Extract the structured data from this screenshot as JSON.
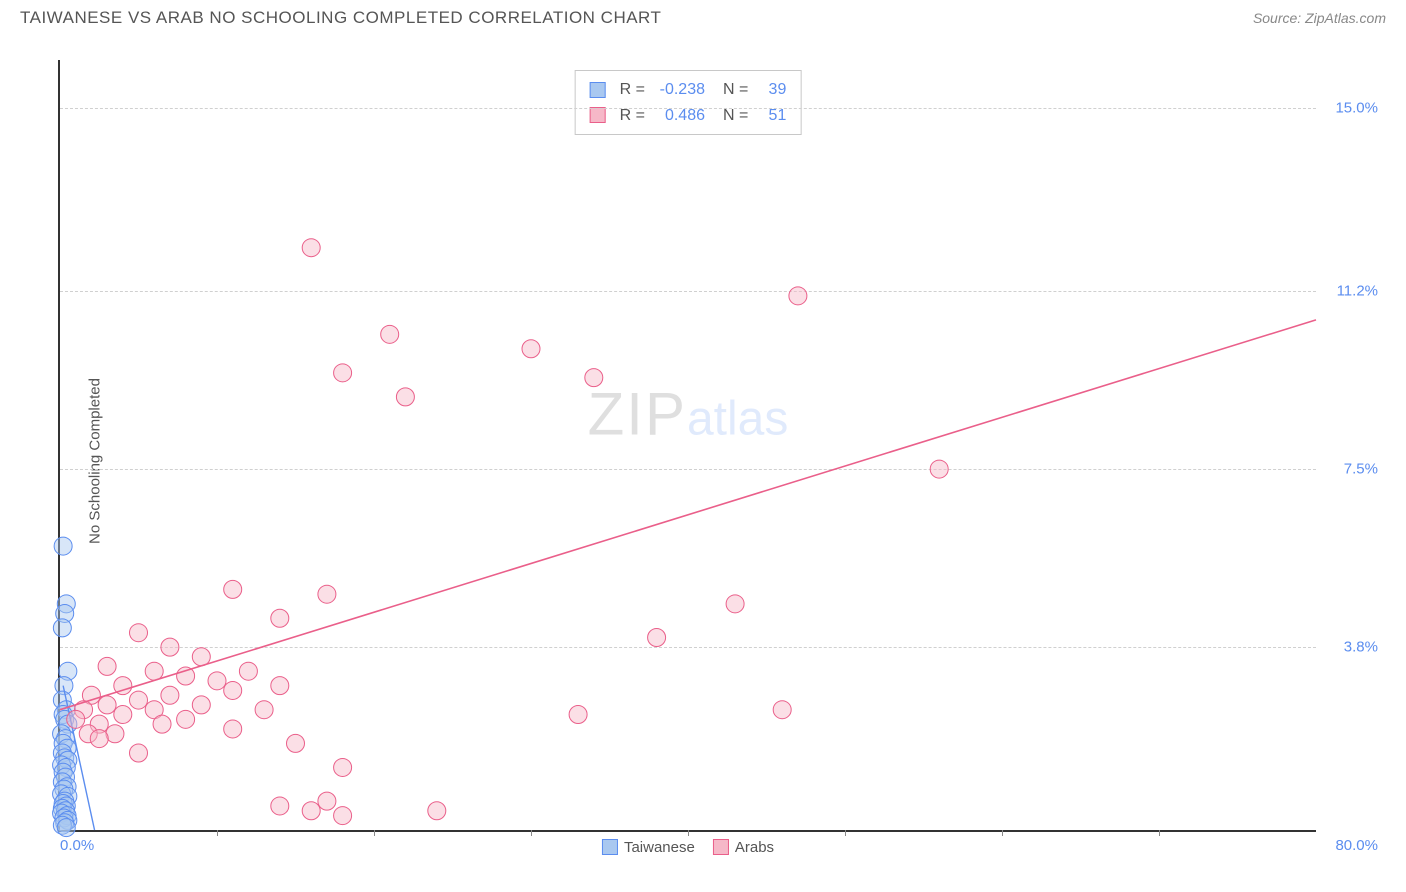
{
  "header": {
    "title": "TAIWANESE VS ARAB NO SCHOOLING COMPLETED CORRELATION CHART",
    "source_prefix": "Source: ",
    "source_name": "ZipAtlas.com"
  },
  "watermark": {
    "part1": "ZIP",
    "part2": "atlas"
  },
  "chart": {
    "type": "scatter",
    "ylabel": "No Schooling Completed",
    "background_color": "#ffffff",
    "grid_color": "#d0d0d0",
    "axis_color": "#333333",
    "label_color": "#5b8def",
    "text_color": "#555555",
    "xlim": [
      0,
      80
    ],
    "ylim": [
      0,
      16
    ],
    "x_origin_label": "0.0%",
    "x_max_label": "80.0%",
    "xtick_step": 10,
    "yticks": [
      {
        "value": 3.8,
        "label": "3.8%"
      },
      {
        "value": 7.5,
        "label": "7.5%"
      },
      {
        "value": 11.2,
        "label": "11.2%"
      },
      {
        "value": 15.0,
        "label": "15.0%"
      }
    ],
    "series": [
      {
        "name": "Taiwanese",
        "marker_color": "#a9c8f0",
        "marker_border": "#5b8def",
        "fill_opacity": 0.45,
        "marker_radius": 9,
        "R": "-0.238",
        "N": "39",
        "trend": {
          "x1": 0.2,
          "y1": 3.0,
          "x2": 2.2,
          "y2": 0.0,
          "color": "#5b8def",
          "width": 1.4
        },
        "points": [
          [
            0.2,
            5.9
          ],
          [
            0.4,
            4.7
          ],
          [
            0.3,
            4.5
          ],
          [
            0.15,
            4.2
          ],
          [
            0.5,
            3.3
          ],
          [
            0.25,
            3.0
          ],
          [
            0.15,
            2.7
          ],
          [
            0.4,
            2.5
          ],
          [
            0.2,
            2.4
          ],
          [
            0.3,
            2.3
          ],
          [
            0.5,
            2.2
          ],
          [
            0.1,
            2.0
          ],
          [
            0.35,
            1.9
          ],
          [
            0.2,
            1.8
          ],
          [
            0.45,
            1.7
          ],
          [
            0.15,
            1.6
          ],
          [
            0.3,
            1.5
          ],
          [
            0.5,
            1.45
          ],
          [
            0.1,
            1.35
          ],
          [
            0.4,
            1.3
          ],
          [
            0.2,
            1.2
          ],
          [
            0.35,
            1.1
          ],
          [
            0.15,
            1.0
          ],
          [
            0.45,
            0.9
          ],
          [
            0.25,
            0.85
          ],
          [
            0.1,
            0.75
          ],
          [
            0.5,
            0.7
          ],
          [
            0.3,
            0.6
          ],
          [
            0.2,
            0.55
          ],
          [
            0.4,
            0.5
          ],
          [
            0.15,
            0.45
          ],
          [
            0.35,
            0.4
          ],
          [
            0.1,
            0.35
          ],
          [
            0.45,
            0.3
          ],
          [
            0.25,
            0.25
          ],
          [
            0.5,
            0.2
          ],
          [
            0.3,
            0.15
          ],
          [
            0.15,
            0.1
          ],
          [
            0.4,
            0.05
          ]
        ]
      },
      {
        "name": "Arabs",
        "marker_color": "#f6b8c8",
        "marker_border": "#ea5f8a",
        "fill_opacity": 0.45,
        "marker_radius": 9,
        "R": "0.486",
        "N": "51",
        "trend": {
          "x1": 0,
          "y1": 2.5,
          "x2": 80,
          "y2": 10.6,
          "color": "#ea5f8a",
          "width": 1.6
        },
        "points": [
          [
            16,
            12.1
          ],
          [
            47,
            11.1
          ],
          [
            21,
            10.3
          ],
          [
            18,
            9.5
          ],
          [
            30,
            10.0
          ],
          [
            22,
            9.0
          ],
          [
            34,
            9.4
          ],
          [
            56,
            7.5
          ],
          [
            11,
            5.0
          ],
          [
            14,
            4.4
          ],
          [
            17,
            4.9
          ],
          [
            5,
            4.1
          ],
          [
            7,
            3.8
          ],
          [
            9,
            3.6
          ],
          [
            3,
            3.4
          ],
          [
            12,
            3.3
          ],
          [
            6,
            3.3
          ],
          [
            8,
            3.2
          ],
          [
            10,
            3.1
          ],
          [
            4,
            3.0
          ],
          [
            14,
            3.0
          ],
          [
            11,
            2.9
          ],
          [
            7,
            2.8
          ],
          [
            2,
            2.8
          ],
          [
            5,
            2.7
          ],
          [
            9,
            2.6
          ],
          [
            3,
            2.6
          ],
          [
            13,
            2.5
          ],
          [
            6,
            2.5
          ],
          [
            1.5,
            2.5
          ],
          [
            4,
            2.4
          ],
          [
            8,
            2.3
          ],
          [
            2.5,
            2.2
          ],
          [
            6.5,
            2.2
          ],
          [
            11,
            2.1
          ],
          [
            3.5,
            2.0
          ],
          [
            15,
            1.8
          ],
          [
            38,
            4.0
          ],
          [
            33,
            2.4
          ],
          [
            43,
            4.7
          ],
          [
            46,
            2.5
          ],
          [
            16,
            0.4
          ],
          [
            17,
            0.6
          ],
          [
            18,
            0.3
          ],
          [
            14,
            0.5
          ],
          [
            24,
            0.4
          ],
          [
            18,
            1.3
          ],
          [
            5,
            1.6
          ],
          [
            1,
            2.3
          ],
          [
            1.8,
            2.0
          ],
          [
            2.5,
            1.9
          ]
        ]
      }
    ],
    "bottom_legend": [
      {
        "label": "Taiwanese",
        "fill": "#a9c8f0",
        "border": "#5b8def"
      },
      {
        "label": "Arabs",
        "fill": "#f6b8c8",
        "border": "#ea5f8a"
      }
    ],
    "top_legend_labels": {
      "R": "R =",
      "N": "N ="
    }
  }
}
